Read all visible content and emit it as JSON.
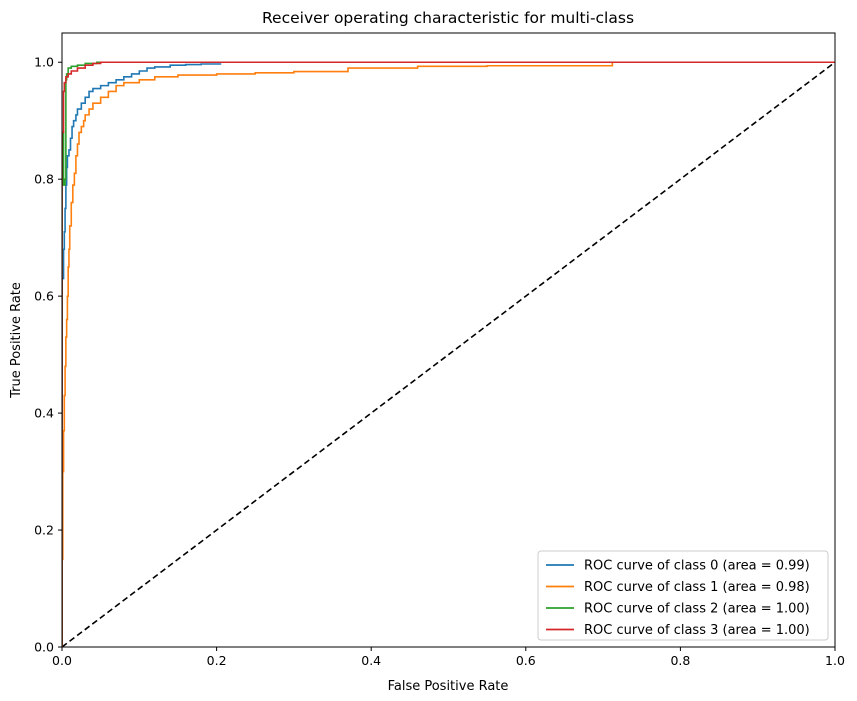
{
  "chart_data": {
    "type": "line",
    "title": "Receiver operating characteristic for multi-class",
    "xlabel": "False Positive Rate",
    "ylabel": "True Positive Rate",
    "xlim": [
      0.0,
      1.0
    ],
    "ylim": [
      0.0,
      1.05
    ],
    "xticks": [
      "0.0",
      "0.2",
      "0.4",
      "0.6",
      "0.8",
      "1.0"
    ],
    "yticks": [
      "0.0",
      "0.2",
      "0.4",
      "0.6",
      "0.8",
      "1.0"
    ],
    "grid": false,
    "legend_position": "lower-right",
    "series": [
      {
        "name": "ROC curve of class 0 (area = 0.99)",
        "color": "#1f77b4",
        "x": [
          0.0,
          0.0,
          0.002,
          0.003,
          0.004,
          0.005,
          0.006,
          0.007,
          0.009,
          0.011,
          0.013,
          0.015,
          0.018,
          0.02,
          0.025,
          0.03,
          0.035,
          0.04,
          0.05,
          0.06,
          0.07,
          0.08,
          0.09,
          0.1,
          0.11,
          0.12,
          0.14,
          0.16,
          0.18,
          0.206
        ],
        "y": [
          0.0,
          0.63,
          0.68,
          0.71,
          0.75,
          0.79,
          0.82,
          0.84,
          0.85,
          0.87,
          0.89,
          0.9,
          0.91,
          0.92,
          0.93,
          0.94,
          0.95,
          0.955,
          0.96,
          0.965,
          0.97,
          0.975,
          0.98,
          0.985,
          0.99,
          0.992,
          0.995,
          0.996,
          0.997,
          0.997
        ]
      },
      {
        "name": "ROC curve of class 1 (area = 0.98)",
        "color": "#ff7f0e",
        "x": [
          0.0,
          0.0,
          0.001,
          0.002,
          0.003,
          0.004,
          0.005,
          0.006,
          0.007,
          0.008,
          0.009,
          0.01,
          0.012,
          0.014,
          0.016,
          0.018,
          0.02,
          0.022,
          0.025,
          0.028,
          0.03,
          0.035,
          0.04,
          0.05,
          0.06,
          0.07,
          0.08,
          0.1,
          0.12,
          0.15,
          0.2,
          0.25,
          0.3,
          0.37,
          0.46,
          0.55,
          0.65,
          0.71,
          0.712,
          1.0
        ],
        "y": [
          0.0,
          0.15,
          0.3,
          0.37,
          0.43,
          0.48,
          0.53,
          0.56,
          0.6,
          0.65,
          0.68,
          0.72,
          0.76,
          0.79,
          0.81,
          0.84,
          0.86,
          0.88,
          0.89,
          0.9,
          0.91,
          0.92,
          0.93,
          0.94,
          0.95,
          0.96,
          0.965,
          0.97,
          0.975,
          0.978,
          0.98,
          0.982,
          0.984,
          0.99,
          0.993,
          0.994,
          0.994,
          0.994,
          1.0,
          1.0
        ]
      },
      {
        "name": "ROC curve of class 2 (area = 1.00)",
        "color": "#2ca02c",
        "x": [
          0.0,
          0.0,
          0.002,
          0.004,
          0.005,
          0.006,
          0.008,
          0.012,
          0.02,
          0.03,
          0.045,
          1.0
        ],
        "y": [
          0.0,
          0.88,
          0.79,
          0.8,
          0.97,
          0.98,
          0.99,
          0.993,
          0.995,
          0.998,
          1.0,
          1.0
        ]
      },
      {
        "name": "ROC curve of class 3 (area = 1.00)",
        "color": "#d62728",
        "x": [
          0.0,
          0.0,
          0.002,
          0.003,
          0.005,
          0.008,
          0.012,
          0.02,
          0.03,
          0.04,
          0.05,
          1.0
        ],
        "y": [
          0.0,
          0.88,
          0.95,
          0.965,
          0.975,
          0.98,
          0.985,
          0.99,
          0.995,
          0.998,
          1.0,
          1.0
        ]
      }
    ],
    "reference_line": {
      "style": "dashed",
      "color": "#000000",
      "x": [
        0.0,
        1.0
      ],
      "y": [
        0.0,
        1.0
      ]
    }
  }
}
